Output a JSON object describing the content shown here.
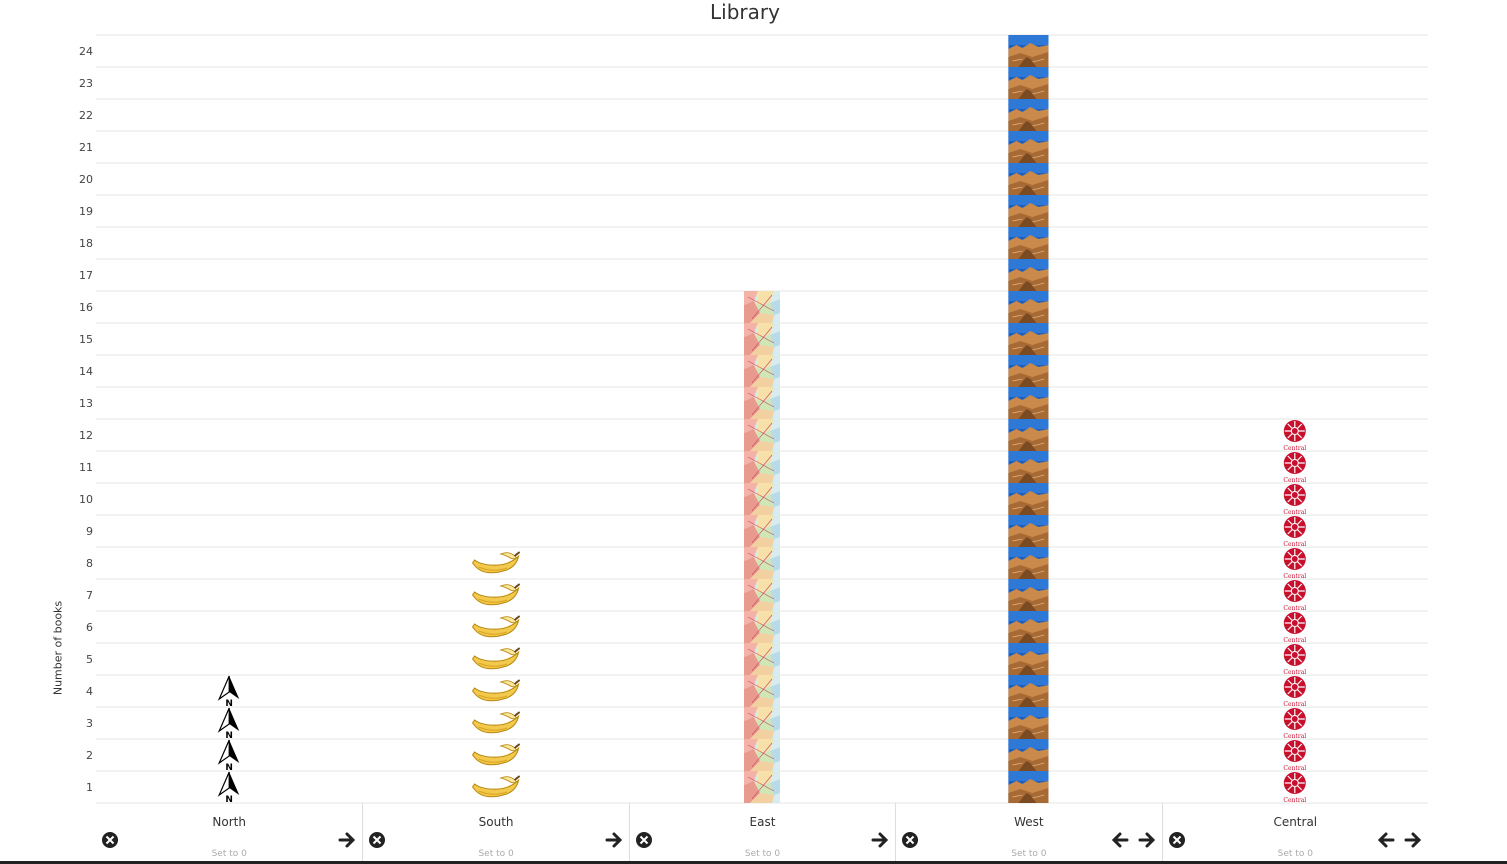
{
  "chart_data": {
    "type": "bar",
    "subtype": "pictograph",
    "title": "Library",
    "xlabel": "",
    "ylabel": "Number of books",
    "ylim": [
      0,
      24
    ],
    "yticks": [
      1,
      2,
      3,
      4,
      5,
      6,
      7,
      8,
      9,
      10,
      11,
      12,
      13,
      14,
      15,
      16,
      17,
      18,
      19,
      20,
      21,
      22,
      23,
      24
    ],
    "categories": [
      "North",
      "South",
      "East",
      "West",
      "Central"
    ],
    "values": [
      4,
      8,
      16,
      24,
      12
    ],
    "icons": [
      "north-arrow-icon",
      "banana-icon",
      "map-icon",
      "canyon-photo-icon",
      "central-emblem-icon"
    ],
    "icon_text": {
      "north": "N",
      "central": "Central"
    },
    "grid": true
  },
  "controls": {
    "reset_label": "Set to 0",
    "columns": [
      {
        "name": "North",
        "remove": true,
        "left": false,
        "right": true
      },
      {
        "name": "South",
        "remove": true,
        "left": false,
        "right": true
      },
      {
        "name": "East",
        "remove": true,
        "left": false,
        "right": true
      },
      {
        "name": "West",
        "remove": true,
        "left": true,
        "right": true
      },
      {
        "name": "Central",
        "remove": true,
        "left": true,
        "right": true
      }
    ]
  },
  "colors": {
    "grid": "#e4e4e4",
    "banana": "#f2c94c",
    "emblem": "#c8102e",
    "sky": "#1f5fbf",
    "sand": "#c98a4b"
  }
}
